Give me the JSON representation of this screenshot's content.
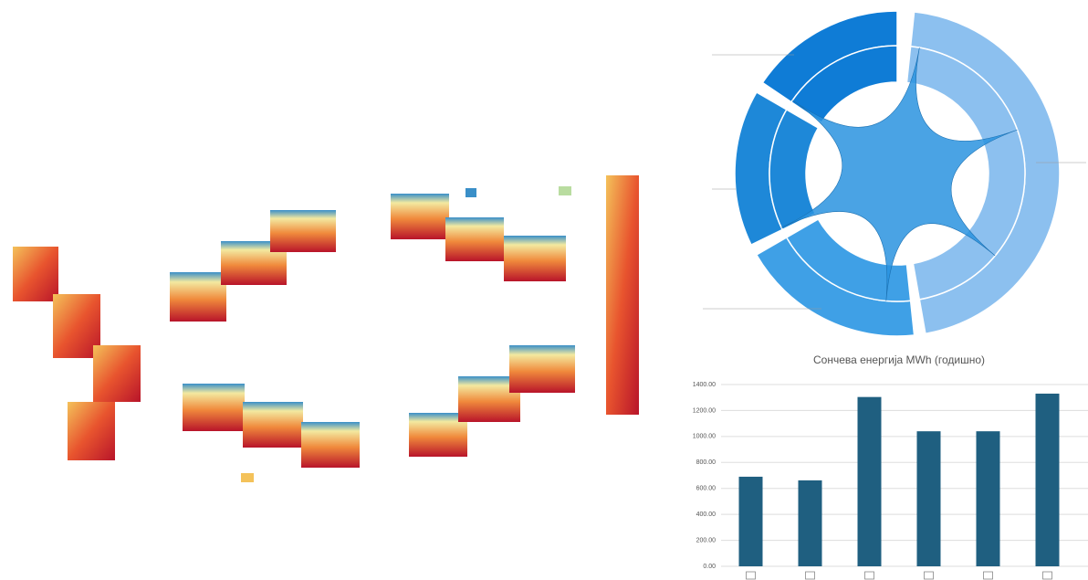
{
  "chart_data": {
    "type": "bar",
    "title": "Сончева енергија MWh (годишно)",
    "categories": [
      null,
      null,
      null,
      null,
      null,
      null
    ],
    "values": [
      690,
      662,
      1304,
      1040,
      1040,
      1330
    ],
    "color": "#1f5f80",
    "ylim": [
      0,
      1400
    ],
    "yticks": [
      {
        "value": 0,
        "label": "0.00"
      },
      {
        "value": 200,
        "label": "200.00"
      },
      {
        "value": 400,
        "label": "400.00"
      },
      {
        "value": 600,
        "label": "600.00"
      },
      {
        "value": 800,
        "label": "800.00"
      },
      {
        "value": 1000,
        "label": "1000.00"
      },
      {
        "value": 1200,
        "label": "1200.00"
      },
      {
        "value": 1400,
        "label": "1400.00"
      }
    ],
    "grid": true
  }
}
